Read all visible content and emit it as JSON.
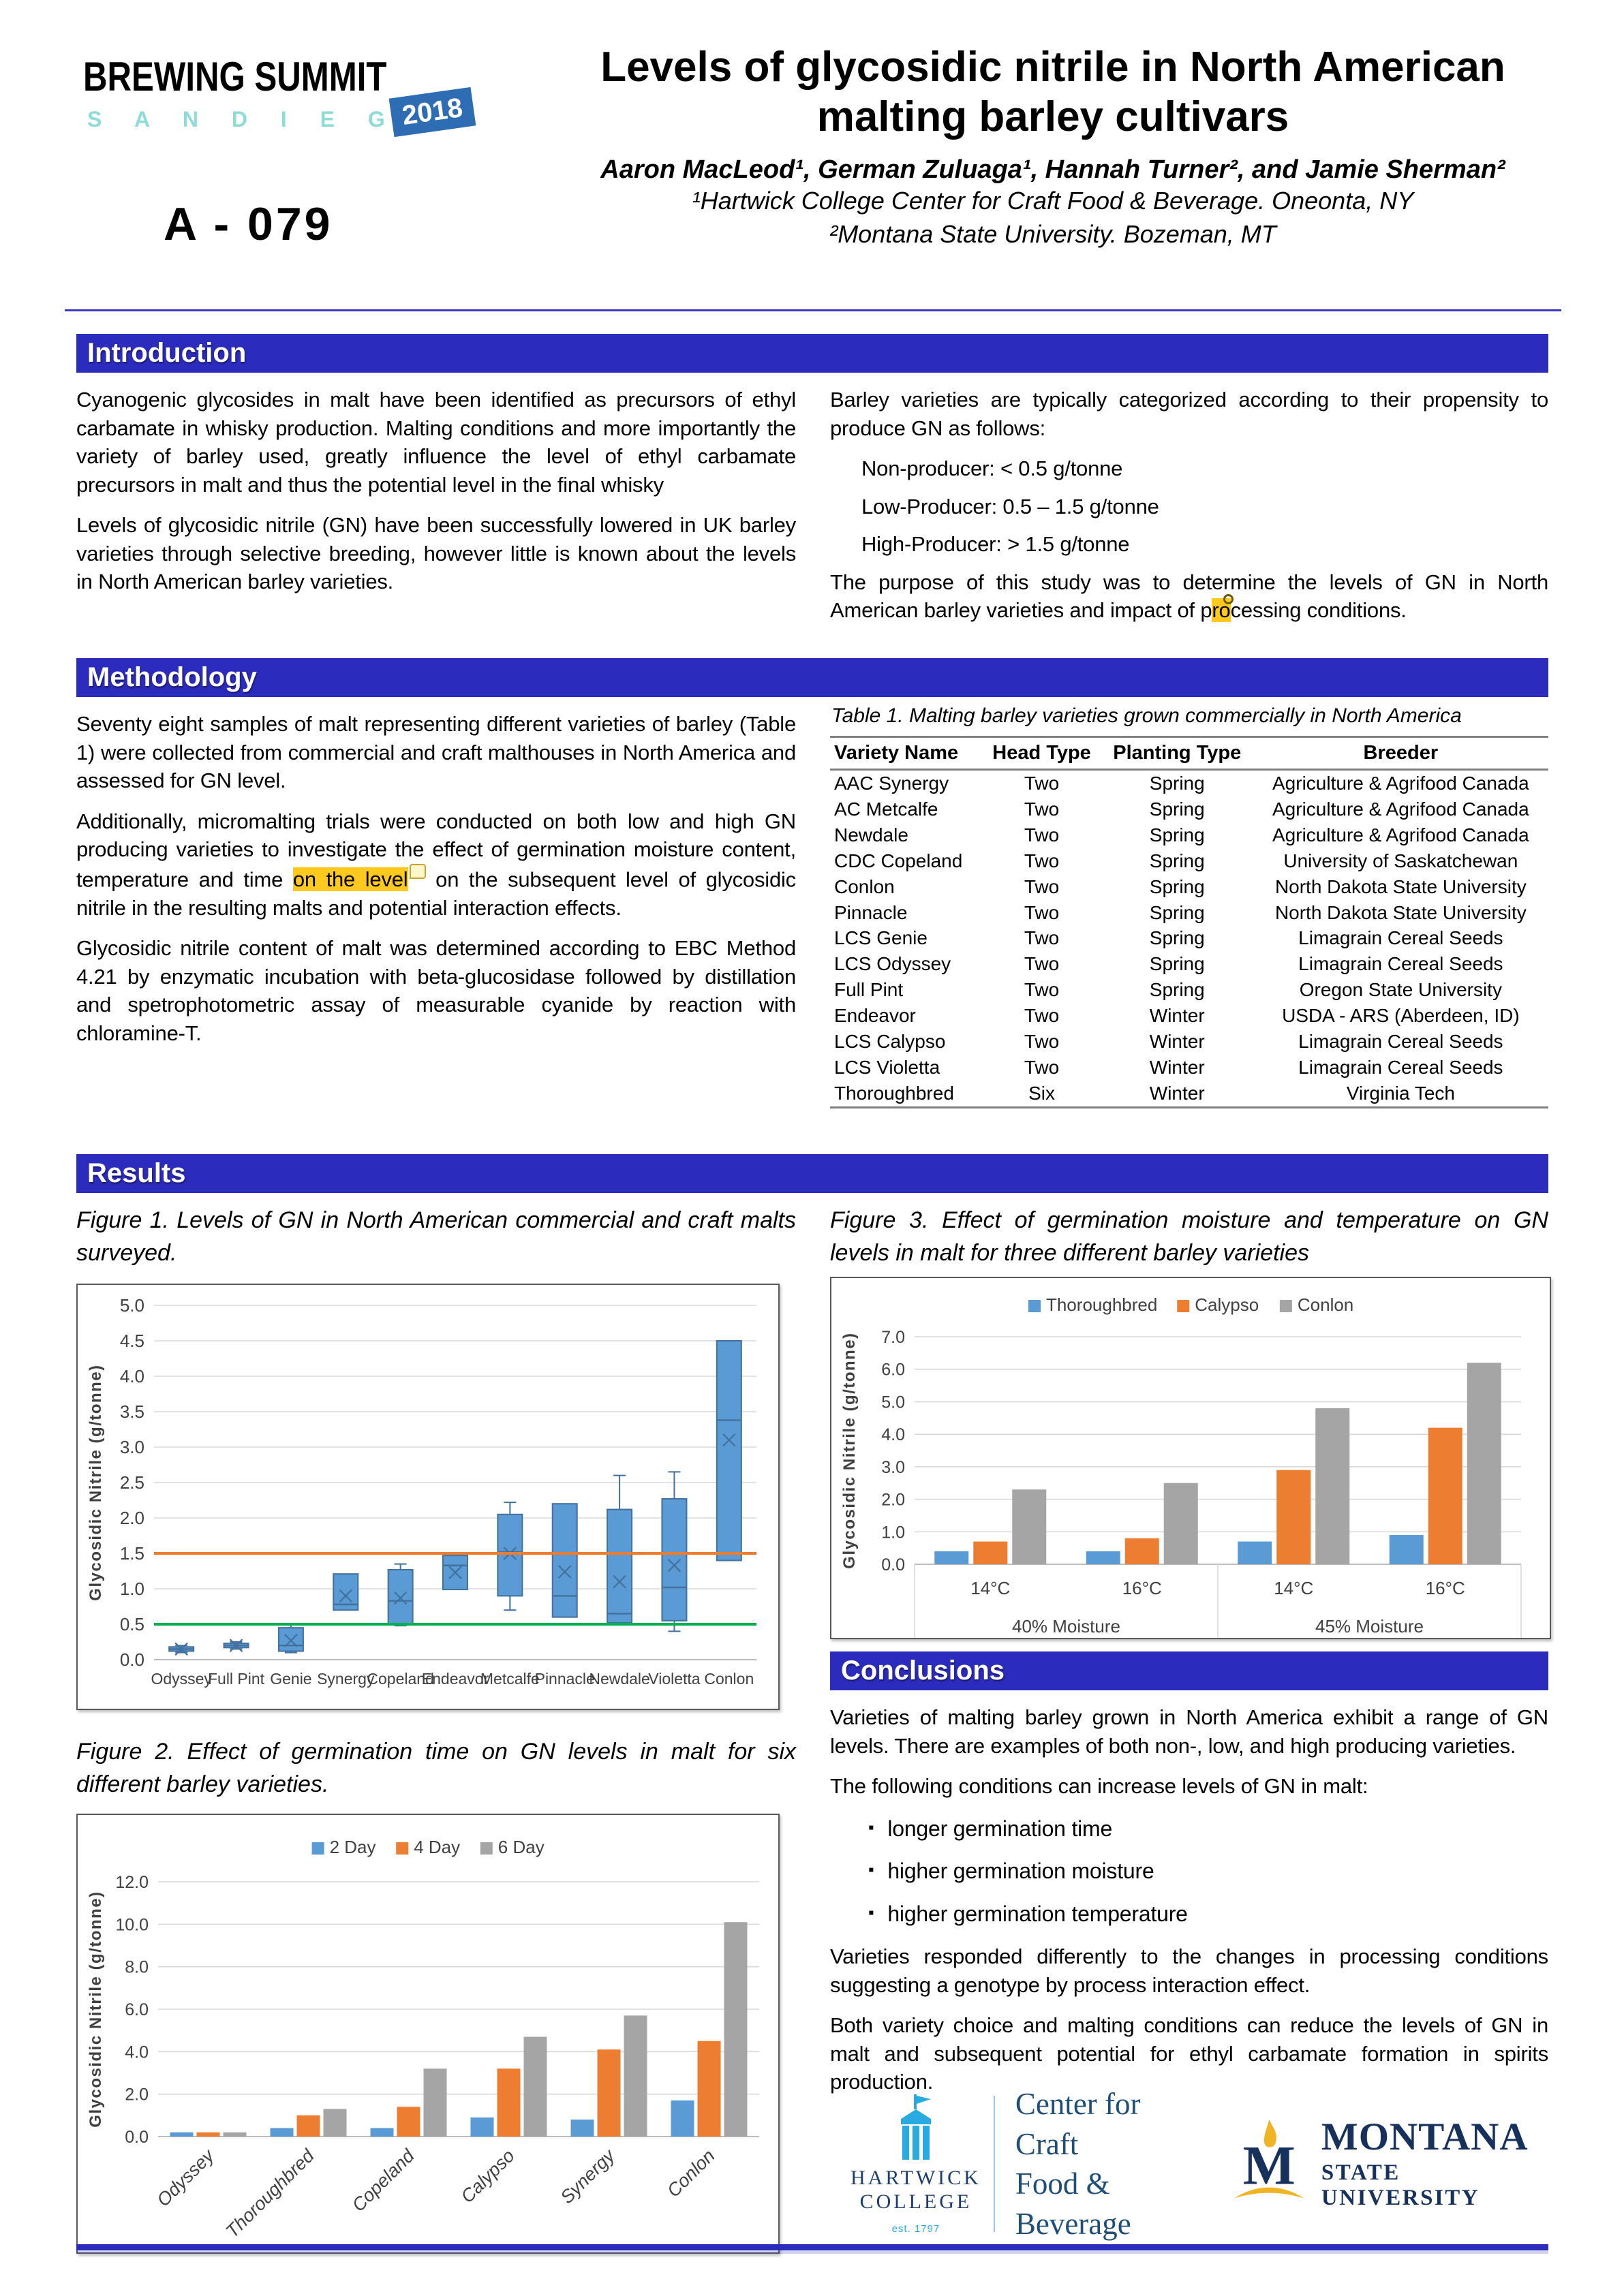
{
  "poster": {
    "number": "A - 079",
    "title_line1": "Levels of glycosidic nitrile in North American",
    "title_line2": "malting barley cultivars",
    "authors": "Aaron MacLeod¹, German Zuluaga¹, Hannah Turner², and Jamie Sherman²",
    "affiliation1": "¹Hartwick College Center for Craft Food & Beverage. Oneonta, NY",
    "affiliation2": "²Montana State University. Bozeman, MT"
  },
  "logo": {
    "line1": "BREWING SUMMIT",
    "line2": "S A N   D I E G O",
    "badge": "2018"
  },
  "sections": {
    "introduction": "Introduction",
    "methodology": "Methodology",
    "results": "Results",
    "conclusions": "Conclusions"
  },
  "introduction": {
    "p1": "Cyanogenic glycosides in malt have been identified as precursors of ethyl carbamate in whisky production. Malting conditions and more importantly the variety of barley used, greatly influence the level of ethyl carbamate precursors in malt and thus the potential level in the final whisky",
    "p2": "Levels of glycosidic nitrile (GN) have been successfully lowered in UK barley varieties through selective breeding, however little is known about the levels in North American barley varieties.",
    "right_p1": "Barley varieties are typically categorized according to their propensity to produce GN as follows:",
    "categories": [
      "Non-producer: < 0.5 g/tonne",
      "Low-Producer: 0.5 – 1.5 g/tonne",
      "High-Producer: > 1.5 g/tonne"
    ],
    "purpose_a": "The purpose of this study was to determine the levels of GN in North American barley varieties and impact of p",
    "purpose_hl": "ro",
    "purpose_b": "cessing conditions."
  },
  "methodology": {
    "p1": "Seventy eight samples of malt representing different varieties of barley (Table 1) were collected from commercial and craft malthouses in North America and assessed for GN level.",
    "p2a": "Additionally, micromalting trials were conducted on both low and high GN producing varieties to investigate the effect of germination moisture content, temperature and time ",
    "p2_hl": "on the level",
    "p2b": " on the subsequent level of glycosidic nitrile in the resulting malts and potential interaction effects.",
    "p3": "Glycosidic nitrile content of malt was determined according to EBC Method 4.21 by enzymatic incubation with beta-glucosidase followed by distillation and spetrophotometric assay of measurable cyanide by reaction with chloramine-T."
  },
  "table1": {
    "caption": "Table 1. Malting barley varieties grown commercially in North America",
    "headers": [
      "Variety Name",
      "Head Type",
      "Planting Type",
      "Breeder"
    ],
    "rows": [
      [
        "AAC Synergy",
        "Two",
        "Spring",
        "Agriculture & Agrifood Canada"
      ],
      [
        "AC Metcalfe",
        "Two",
        "Spring",
        "Agriculture & Agrifood Canada"
      ],
      [
        "Newdale",
        "Two",
        "Spring",
        "Agriculture & Agrifood Canada"
      ],
      [
        "CDC Copeland",
        "Two",
        "Spring",
        "University of Saskatchewan"
      ],
      [
        "Conlon",
        "Two",
        "Spring",
        "North Dakota State University"
      ],
      [
        "Pinnacle",
        "Two",
        "Spring",
        "North Dakota State University"
      ],
      [
        "LCS Genie",
        "Two",
        "Spring",
        "Limagrain Cereal Seeds"
      ],
      [
        "LCS Odyssey",
        "Two",
        "Spring",
        "Limagrain Cereal Seeds"
      ],
      [
        "Full Pint",
        "Two",
        "Spring",
        "Oregon State University"
      ],
      [
        "Endeavor",
        "Two",
        "Winter",
        "USDA - ARS (Aberdeen, ID)"
      ],
      [
        "LCS Calypso",
        "Two",
        "Winter",
        "Limagrain Cereal Seeds"
      ],
      [
        "LCS Violetta",
        "Two",
        "Winter",
        "Limagrain Cereal Seeds"
      ],
      [
        "Thoroughbred",
        "Six",
        "Winter",
        "Virginia Tech"
      ]
    ]
  },
  "figures": {
    "fig1_caption": "Figure 1. Levels of GN in North American commercial and craft malts surveyed.",
    "fig2_caption": "Figure 2. Effect of germination time on GN levels in malt for six different barley varieties.",
    "fig3_caption": "Figure 3. Effect of germination moisture and temperature on GN levels in malt for three different barley varieties"
  },
  "chart_data": [
    {
      "id": "figure1",
      "type": "box",
      "title": "Levels of GN in North American commercial and craft malts",
      "ylabel": "Glycosidic Nitrile (g/tonne)",
      "ylim": [
        0,
        5.0
      ],
      "ytick": 0.5,
      "grid": true,
      "legend_position": "none",
      "categories": [
        "Odyssey",
        "Full Pint",
        "Genie",
        "Synergy",
        "Copeland",
        "Endeavor",
        "Metcalfe",
        "Pinnacle",
        "Newdale",
        "Violetta",
        "Conlon"
      ],
      "boxes": [
        {
          "lo": 0.1,
          "q1": 0.12,
          "med": 0.15,
          "q3": 0.18,
          "hi": 0.2,
          "mean": 0.15
        },
        {
          "lo": 0.15,
          "q1": 0.17,
          "med": 0.2,
          "q3": 0.23,
          "hi": 0.25,
          "mean": 0.2
        },
        {
          "lo": 0.1,
          "q1": 0.12,
          "med": 0.2,
          "q3": 0.45,
          "hi": 0.5,
          "mean": 0.27
        },
        {
          "lo": 0.7,
          "q1": 0.7,
          "med": 0.78,
          "q3": 1.21,
          "hi": 1.21,
          "mean": 0.9
        },
        {
          "lo": 0.48,
          "q1": 0.5,
          "med": 0.83,
          "q3": 1.27,
          "hi": 1.35,
          "mean": 0.87
        },
        {
          "lo": 0.99,
          "q1": 0.99,
          "med": 1.33,
          "q3": 1.47,
          "hi": 1.47,
          "mean": 1.23
        },
        {
          "lo": 0.7,
          "q1": 0.9,
          "med": 1.52,
          "q3": 2.05,
          "hi": 2.22,
          "mean": 1.5
        },
        {
          "lo": 0.6,
          "q1": 0.6,
          "med": 0.9,
          "q3": 2.2,
          "hi": 2.2,
          "mean": 1.24
        },
        {
          "lo": 0.52,
          "q1": 0.52,
          "med": 0.65,
          "q3": 2.12,
          "hi": 2.6,
          "mean": 1.1
        },
        {
          "lo": 0.4,
          "q1": 0.55,
          "med": 1.02,
          "q3": 2.27,
          "hi": 2.65,
          "mean": 1.33
        },
        {
          "lo": 1.4,
          "q1": 1.4,
          "med": 3.38,
          "q3": 4.5,
          "hi": 4.5,
          "mean": 3.1
        }
      ],
      "ref_lines": [
        {
          "y": 1.5,
          "color": "#ED7D31"
        },
        {
          "y": 0.5,
          "color": "#00B050"
        }
      ],
      "box_fill": "#5B9BD5",
      "box_stroke": "#41719C"
    },
    {
      "id": "figure2",
      "type": "bar",
      "title": "Effect of germination time on GN levels",
      "ylabel": "Glycosidic Nitrile (g/tonne)",
      "ylim": [
        0,
        12.0
      ],
      "ytick": 2.0,
      "grid": true,
      "legend_position": "top",
      "categories": [
        "Odyssey",
        "Thoroughbred",
        "Copeland",
        "Calypso",
        "Synergy",
        "Conlon"
      ],
      "series": [
        {
          "name": "2 Day",
          "color": "#5B9BD5",
          "values": [
            0.2,
            0.4,
            0.4,
            0.9,
            0.8,
            1.7
          ]
        },
        {
          "name": "4 Day",
          "color": "#ED7D31",
          "values": [
            0.2,
            1.0,
            1.4,
            3.2,
            4.1,
            4.5
          ]
        },
        {
          "name": "6 Day",
          "color": "#A5A5A5",
          "values": [
            0.2,
            1.3,
            3.2,
            4.7,
            5.7,
            10.1
          ]
        }
      ]
    },
    {
      "id": "figure3",
      "type": "grouped-bar",
      "title": "Effect of germination moisture and temperature on GN levels",
      "ylabel": "Glycosidic Nitrile (g/tonne)",
      "ylim": [
        0,
        7.0
      ],
      "ytick": 1.0,
      "grid": true,
      "legend_position": "top",
      "groups": [
        {
          "label": "40% Moisture",
          "cats": [
            "14°C",
            "16°C"
          ]
        },
        {
          "label": "45% Moisture",
          "cats": [
            "14°C",
            "16°C"
          ]
        }
      ],
      "series": [
        {
          "name": "Thoroughbred",
          "color": "#5B9BD5",
          "values": [
            0.4,
            0.4,
            0.7,
            0.9
          ]
        },
        {
          "name": "Calypso",
          "color": "#ED7D31",
          "values": [
            0.7,
            0.8,
            2.9,
            4.2
          ]
        },
        {
          "name": "Conlon",
          "color": "#A5A5A5",
          "values": [
            2.3,
            2.5,
            4.8,
            6.2
          ]
        }
      ]
    }
  ],
  "conclusions": {
    "p1": "Varieties of malting barley grown in North America exhibit a range of GN levels.  There are examples of both non-, low, and high producing varieties.",
    "p2": "The following conditions can increase levels of GN in malt:",
    "bullets": [
      "longer germination time",
      "higher germination moisture",
      "higher germination temperature"
    ],
    "p3": "Varieties responded differently to the changes in processing conditions suggesting a genotype by process interaction effect.",
    "p4": "Both variety choice and malting conditions can reduce the levels of GN in malt and subsequent potential for ethyl carbamate formation in spirits production."
  },
  "footer": {
    "hartwick_line1": "HARTWICK",
    "hartwick_line2": "COLLEGE",
    "hartwick_est": "est. 1797",
    "center_line1": "Center for Craft",
    "center_line2": "Food & Beverage",
    "msu_line1": "MONTANA",
    "msu_line2": "STATE UNIVERSITY"
  },
  "colors": {
    "section_bar": "#2B2BBD",
    "highlight": "#FFC91E",
    "box_fill": "#5B9BD5",
    "box_stroke": "#41719C",
    "orange_ref": "#ED7D31",
    "green_ref": "#00B050",
    "gray_series": "#A5A5A5"
  }
}
